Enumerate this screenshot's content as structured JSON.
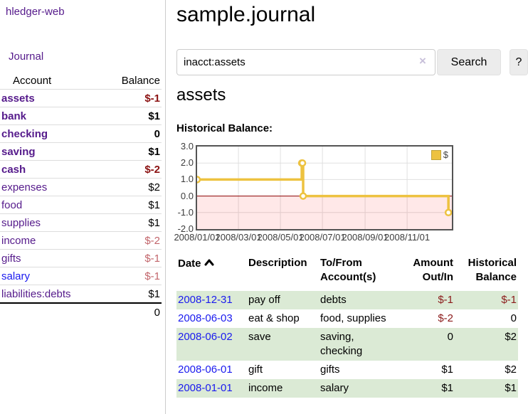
{
  "sidebar": {
    "brand": "hledger-web",
    "nav": {
      "journal": "Journal"
    },
    "accounts": {
      "col_account": "Account",
      "col_balance": "Balance",
      "rows": [
        {
          "name": "assets",
          "balance": "$-1"
        },
        {
          "name": "bank",
          "balance": "$1"
        },
        {
          "name": "checking",
          "balance": "0"
        },
        {
          "name": "saving",
          "balance": "$1"
        },
        {
          "name": "cash",
          "balance": "$-2"
        },
        {
          "name": "expenses",
          "balance": "$2"
        },
        {
          "name": "food",
          "balance": "$1"
        },
        {
          "name": "supplies",
          "balance": "$1"
        },
        {
          "name": "income",
          "balance": "$-2"
        },
        {
          "name": "gifts",
          "balance": "$-1"
        },
        {
          "name": "salary",
          "balance": "$-1"
        },
        {
          "name": "liabilities:debts",
          "balance": "$1"
        }
      ],
      "total": "0"
    }
  },
  "main": {
    "title": "sample.journal",
    "search": {
      "value": "inacct:assets",
      "clear_icon": "×",
      "search_label": "Search",
      "help_label": "?"
    },
    "account_title": "assets",
    "chart_label": "Historical Balance:"
  },
  "chart_data": {
    "type": "line",
    "title": "Historical Balance:",
    "step": true,
    "legend_position": "top-right",
    "x_max_day": 370,
    "ylim": [
      -2,
      3
    ],
    "y_ticks": [
      {
        "v": 3,
        "label": "3.0"
      },
      {
        "v": 2,
        "label": "2.0"
      },
      {
        "v": 1,
        "label": "1.0"
      },
      {
        "v": 0,
        "label": "0.0"
      },
      {
        "v": -1,
        "label": "-1.0"
      },
      {
        "v": -2,
        "label": "-2.0"
      }
    ],
    "x_ticks": [
      {
        "day": 0,
        "label": "2008/01/01"
      },
      {
        "day": 60,
        "label": "2008/03/01"
      },
      {
        "day": 121,
        "label": "2008/05/01"
      },
      {
        "day": 182,
        "label": "2008/07/01"
      },
      {
        "day": 244,
        "label": "2008/09/01"
      },
      {
        "day": 305,
        "label": "2008/11/01"
      }
    ],
    "series": [
      {
        "name": "$",
        "color": "#edc240",
        "points": [
          [
            0,
            1
          ],
          [
            152,
            2
          ],
          [
            153,
            2
          ],
          [
            154,
            0
          ],
          [
            365,
            -1
          ]
        ]
      }
    ],
    "grid_color": "#e0e0e0",
    "negative_fill": "rgba(255,0,0,0.09)",
    "zero_line_color": "#8b0000",
    "border_color": "#545454"
  },
  "register": {
    "headers": {
      "date": "Date",
      "description": "Description",
      "accounts": "To/From Account(s)",
      "amount": "Amount Out/In",
      "balance": "Historical Balance"
    },
    "rows": [
      {
        "date": "2008-12-31",
        "description": "pay off",
        "accounts": "debts",
        "amount": "$-1",
        "balance": "$-1"
      },
      {
        "date": "2008-06-03",
        "description": "eat & shop",
        "accounts": "food, supplies",
        "amount": "$-2",
        "balance": "0"
      },
      {
        "date": "2008-06-02",
        "description": "save",
        "accounts": "saving, checking",
        "amount": "0",
        "balance": "$2"
      },
      {
        "date": "2008-06-01",
        "description": "gift",
        "accounts": "gifts",
        "amount": "$1",
        "balance": "$2"
      },
      {
        "date": "2008-01-01",
        "description": "income",
        "accounts": "salary",
        "amount": "$1",
        "balance": "$1"
      }
    ]
  },
  "colors": {
    "link_purple": "#551a8b",
    "link_blue": "#1a1aef",
    "negative_strong": "#8b1212",
    "negative_soft": "#c2656b",
    "row_stripe_green": "#dbead5",
    "series_gold": "#edc240"
  }
}
